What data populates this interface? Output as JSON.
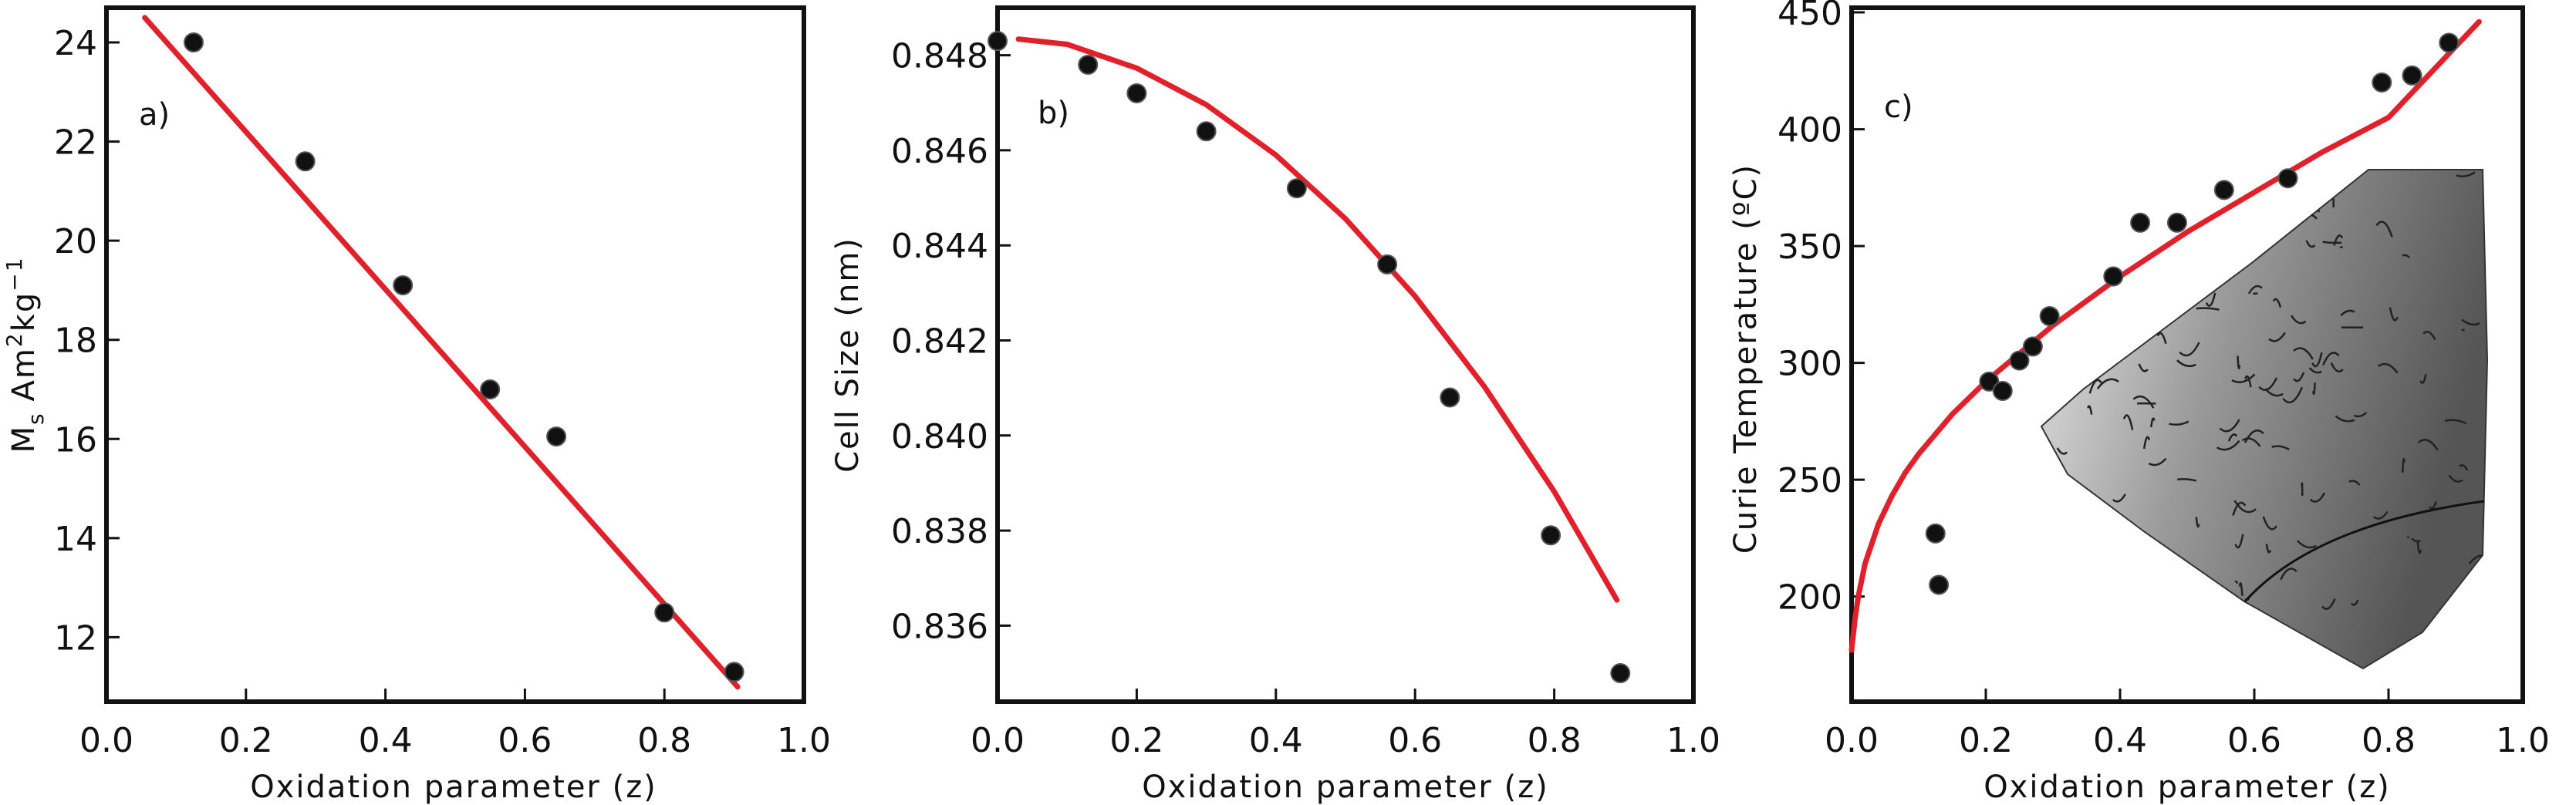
{
  "chart_data": [
    {
      "type": "scatter",
      "panel_label": "a)",
      "xlabel": "Oxidation parameter (z)",
      "ylabel": {
        "main": "M",
        "sub": "s",
        "unit": "Am",
        "sup1": "2",
        "unit2": "kg",
        "sup2": "−1"
      },
      "xlim": [
        0.0,
        1.0
      ],
      "ylim": [
        10.7,
        24.7
      ],
      "xticks": [
        "0.0",
        "0.2",
        "0.4",
        "0.6",
        "0.8",
        "1.0"
      ],
      "yticks": [
        "12",
        "14",
        "16",
        "18",
        "20",
        "22",
        "24"
      ],
      "grid": false,
      "points": {
        "x": [
          0.125,
          0.285,
          0.425,
          0.55,
          0.645,
          0.8,
          0.9
        ],
        "y": [
          24.0,
          21.6,
          19.1,
          17.0,
          16.05,
          12.5,
          11.3
        ]
      },
      "fit": {
        "x": [
          0.055,
          0.905
        ],
        "y": [
          24.5,
          11.0
        ]
      }
    },
    {
      "type": "scatter",
      "panel_label": "b)",
      "xlabel": "Oxidation parameter (z)",
      "ylabel": "Cell Size (nm)",
      "xlim": [
        0.0,
        1.0
      ],
      "ylim": [
        0.8344,
        0.849
      ],
      "xticks": [
        "0.0",
        "0.2",
        "0.4",
        "0.6",
        "0.8",
        "1.0"
      ],
      "yticks": [
        "0.836",
        "0.838",
        "0.840",
        "0.842",
        "0.844",
        "0.846",
        "0.848"
      ],
      "grid": false,
      "points": {
        "x": [
          0.0,
          0.13,
          0.2,
          0.3,
          0.43,
          0.56,
          0.65,
          0.795,
          0.895
        ],
        "y": [
          0.8483,
          0.8478,
          0.8472,
          0.8464,
          0.8452,
          0.8436,
          0.8408,
          0.8379,
          0.835
        ]
      },
      "fit": {
        "x": [
          0.03,
          0.1,
          0.2,
          0.3,
          0.4,
          0.5,
          0.6,
          0.7,
          0.8,
          0.89
        ],
        "y": [
          0.84834,
          0.84823,
          0.84773,
          0.84696,
          0.8459,
          0.84456,
          0.84293,
          0.84102,
          0.83882,
          0.83654
        ]
      }
    },
    {
      "type": "scatter",
      "panel_label": "c)",
      "xlabel": "Oxidation parameter (z)",
      "ylabel": "Curie Temperature (ºC)",
      "xlim": [
        0.0,
        1.0
      ],
      "ylim": [
        155,
        452
      ],
      "xticks": [
        "0.0",
        "0.2",
        "0.4",
        "0.6",
        "0.8",
        "1.0"
      ],
      "yticks": [
        "200",
        "250",
        "300",
        "350",
        "400",
        "450"
      ],
      "grid": false,
      "points": {
        "x": [
          0.125,
          0.13,
          0.205,
          0.225,
          0.25,
          0.27,
          0.295,
          0.39,
          0.43,
          0.485,
          0.555,
          0.65,
          0.79,
          0.835,
          0.89
        ],
        "y": [
          227,
          205,
          292,
          288,
          301,
          307,
          320,
          337,
          360,
          360,
          374,
          379,
          420,
          423,
          437
        ]
      },
      "fit": {
        "x": [
          0.0,
          0.005,
          0.01,
          0.02,
          0.04,
          0.06,
          0.08,
          0.1,
          0.15,
          0.2,
          0.3,
          0.4,
          0.5,
          0.6,
          0.7,
          0.8,
          0.935
        ],
        "y": [
          177,
          190,
          200,
          214,
          231,
          243,
          253,
          261,
          278,
          292,
          316,
          337,
          356,
          373,
          390,
          405,
          446
        ]
      },
      "inset": "micrograph"
    }
  ],
  "colors": {
    "fit_line": "#e0202a",
    "marker": "#111111",
    "axes": "#111111"
  }
}
